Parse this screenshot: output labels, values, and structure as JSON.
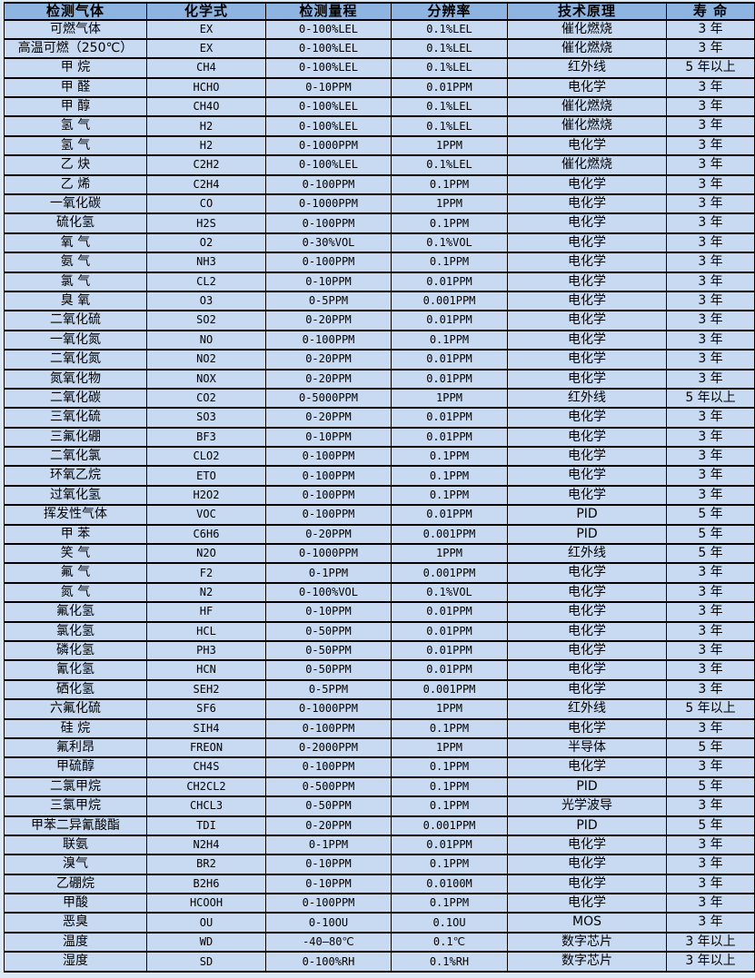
{
  "colors": {
    "header_bg": "#8eb4e2",
    "row_bg": "#c8daf2",
    "border": "#000000",
    "page_bg": "#dde8f6",
    "text": "#000000"
  },
  "table": {
    "columns": [
      "检测气体",
      "化学式",
      "检测量程",
      "分辨率",
      "技术原理",
      "寿 命"
    ],
    "rows": [
      [
        "可燃气体",
        "EX",
        "0-100%LEL",
        "0.1%LEL",
        "催化燃烧",
        "3 年"
      ],
      [
        "高温可燃（250℃）",
        "EX",
        "0-100%LEL",
        "0.1%LEL",
        "催化燃烧",
        "3 年"
      ],
      [
        "甲 烷",
        "CH4",
        "0-100%LEL",
        "0.1%LEL",
        "红外线",
        "5 年以上"
      ],
      [
        "甲 醛",
        "HCHO",
        "0-10PPM",
        "0.01PPM",
        "电化学",
        "3 年"
      ],
      [
        "甲 醇",
        "CH4O",
        "0-100%LEL",
        "0.1%LEL",
        "催化燃烧",
        "3 年"
      ],
      [
        "氢 气",
        "H2",
        "0-100%LEL",
        "0.1%LEL",
        "催化燃烧",
        "3 年"
      ],
      [
        "氢 气",
        "H2",
        "0-1000PPM",
        "1PPM",
        "电化学",
        "3 年"
      ],
      [
        "乙 炔",
        "C2H2",
        "0-100%LEL",
        "0.1%LEL",
        "催化燃烧",
        "3 年"
      ],
      [
        "乙 烯",
        "C2H4",
        "0-100PPM",
        "0.1PPM",
        "电化学",
        "3 年"
      ],
      [
        "一氧化碳",
        "CO",
        "0-1000PPM",
        "1PPM",
        "电化学",
        "3 年"
      ],
      [
        "硫化氢",
        "H2S",
        "0-100PPM",
        "0.1PPM",
        "电化学",
        "3 年"
      ],
      [
        "氧 气",
        "O2",
        "0-30%VOL",
        "0.1%VOL",
        "电化学",
        "3 年"
      ],
      [
        "氨 气",
        "NH3",
        "0-100PPM",
        "0.1PPM",
        "电化学",
        "3 年"
      ],
      [
        "氯 气",
        "CL2",
        "0-10PPM",
        "0.01PPM",
        "电化学",
        "3 年"
      ],
      [
        "臭 氧",
        "O3",
        "0-5PPM",
        "0.001PPM",
        "电化学",
        "3 年"
      ],
      [
        "二氧化硫",
        "SO2",
        "0-20PPM",
        "0.01PPM",
        "电化学",
        "3 年"
      ],
      [
        "一氧化氮",
        "NO",
        "0-100PPM",
        "0.1PPM",
        "电化学",
        "3 年"
      ],
      [
        "二氧化氮",
        "NO2",
        "0-20PPM",
        "0.01PPM",
        "电化学",
        "3 年"
      ],
      [
        "氮氧化物",
        "NOX",
        "0-20PPM",
        "0.01PPM",
        "电化学",
        "3 年"
      ],
      [
        "二氧化碳",
        "CO2",
        "0-5000PPM",
        "1PPM",
        "红外线",
        "5 年以上"
      ],
      [
        "三氧化硫",
        "SO3",
        "0-20PPM",
        "0.01PPM",
        "电化学",
        "3 年"
      ],
      [
        "三氟化硼",
        "BF3",
        "0-10PPM",
        "0.01PPM",
        "电化学",
        "3 年"
      ],
      [
        "二氧化氯",
        "CLO2",
        "0-100PPM",
        "0.1PPM",
        "电化学",
        "3 年"
      ],
      [
        "环氧乙烷",
        "ETO",
        "0-100PPM",
        "0.1PPM",
        "电化学",
        "3 年"
      ],
      [
        "过氧化氢",
        "H2O2",
        "0-100PPM",
        "0.1PPM",
        "电化学",
        "3 年"
      ],
      [
        "挥发性气体",
        "VOC",
        "0-100PPM",
        "0.01PPM",
        "PID",
        "5 年"
      ],
      [
        "甲 苯",
        "C6H6",
        "0-20PPM",
        "0.001PPM",
        "PID",
        "5 年"
      ],
      [
        "笑 气",
        "N2O",
        "0-1000PPM",
        "1PPM",
        "红外线",
        "5 年"
      ],
      [
        "氟 气",
        "F2",
        "0-1PPM",
        "0.001PPM",
        "电化学",
        "3 年"
      ],
      [
        "氮 气",
        "N2",
        "0-100%VOL",
        "0.1%VOL",
        "电化学",
        "3 年"
      ],
      [
        "氟化氢",
        "HF",
        "0-10PPM",
        "0.01PPM",
        "电化学",
        "3 年"
      ],
      [
        "氯化氢",
        "HCL",
        "0-50PPM",
        "0.01PPM",
        "电化学",
        "3 年"
      ],
      [
        "磷化氢",
        "PH3",
        "0-50PPM",
        "0.01PPM",
        "电化学",
        "3 年"
      ],
      [
        "氰化氢",
        "HCN",
        "0-50PPM",
        "0.01PPM",
        "电化学",
        "3 年"
      ],
      [
        "硒化氢",
        "SEH2",
        "0-5PPM",
        "0.001PPM",
        "电化学",
        "3 年"
      ],
      [
        "六氟化硫",
        "SF6",
        "0-1000PPM",
        "1PPM",
        "红外线",
        "5 年以上"
      ],
      [
        "硅 烷",
        "SIH4",
        "0-100PPM",
        "0.1PPM",
        "电化学",
        "3 年"
      ],
      [
        "氟利昂",
        "FREON",
        "0-2000PPM",
        "1PPM",
        "半导体",
        "5 年"
      ],
      [
        "甲硫醇",
        "CH4S",
        "0-100PPM",
        "0.1PPM",
        "电化学",
        "3 年"
      ],
      [
        "二氯甲烷",
        "CH2CL2",
        "0-500PPM",
        "0.1PPM",
        "PID",
        "5 年"
      ],
      [
        "三氯甲烷",
        "CHCL3",
        "0-50PPM",
        "0.1PPM",
        "光学波导",
        "3 年"
      ],
      [
        "甲苯二异氰酸酯",
        "TDI",
        "0-20PPM",
        "0.001PPM",
        "PID",
        "5 年"
      ],
      [
        "联氨",
        "N2H4",
        "0-1PPM",
        "0.01PPM",
        "电化学",
        "3 年"
      ],
      [
        "溴气",
        "BR2",
        "0-10PPM",
        "0.1PPM",
        "电化学",
        "3 年"
      ],
      [
        "乙硼烷",
        "B2H6",
        "0-10PPM",
        "0.0100M",
        "电化学",
        "3 年"
      ],
      [
        "甲酸",
        "HCOOH",
        "0-100PPM",
        "0.1PPM",
        "电化学",
        "3 年"
      ],
      [
        "恶臭",
        "OU",
        "0-10OU",
        "0.1OU",
        "MOS",
        "3 年"
      ],
      [
        "温度",
        "WD",
        "-40—80℃",
        "0.1℃",
        "数字芯片",
        "3 年以上"
      ],
      [
        "湿度",
        "SD",
        "0-100%RH",
        "0.1%RH",
        "数字芯片",
        "3 年以上"
      ]
    ]
  }
}
